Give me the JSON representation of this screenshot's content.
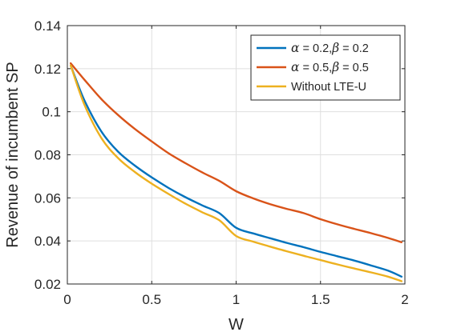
{
  "chart_data": {
    "type": "line",
    "title": "",
    "xlabel": "W",
    "ylabel": "Revenue of incumbent SP",
    "xlim": [
      0,
      2
    ],
    "ylim": [
      0.02,
      0.14
    ],
    "xticks": [
      0,
      0.5,
      1,
      1.5,
      2
    ],
    "xtick_labels": [
      "0",
      "0.5",
      "1",
      "1.5",
      "2"
    ],
    "yticks": [
      0.02,
      0.04,
      0.06,
      0.08,
      0.1,
      0.12,
      0.14
    ],
    "ytick_labels": [
      "0.02",
      "0.04",
      "0.06",
      "0.08",
      "0.1",
      "0.12",
      "0.14"
    ],
    "grid": true,
    "legend_position": "top-right",
    "x": [
      0.02,
      0.1,
      0.2,
      0.3,
      0.4,
      0.5,
      0.6,
      0.7,
      0.8,
      0.9,
      1.0,
      1.1,
      1.2,
      1.3,
      1.4,
      1.5,
      1.6,
      1.7,
      1.8,
      1.9,
      1.98
    ],
    "series": [
      {
        "legend_parts": [
          "α",
          " = 0.2,",
          "β",
          " = 0.2"
        ],
        "color": "#0072BD",
        "values": [
          0.1215,
          0.1055,
          0.091,
          0.0815,
          0.075,
          0.0695,
          0.0646,
          0.0603,
          0.0565,
          0.0529,
          0.0461,
          0.0435,
          0.0413,
          0.0391,
          0.0371,
          0.0349,
          0.0329,
          0.0309,
          0.0286,
          0.0262,
          0.0234
        ]
      },
      {
        "legend_parts": [
          "α",
          " = 0.5,",
          "β",
          " = 0.5"
        ],
        "color": "#D95319",
        "values": [
          0.1225,
          0.115,
          0.106,
          0.0985,
          0.092,
          0.0862,
          0.0807,
          0.0761,
          0.0718,
          0.0679,
          0.0631,
          0.0598,
          0.0571,
          0.0549,
          0.0529,
          0.0501,
          0.0477,
          0.0456,
          0.0436,
          0.0414,
          0.0394
        ]
      },
      {
        "legend_parts": [
          "Without LTE-U"
        ],
        "color": "#EDB120",
        "values": [
          0.1215,
          0.1035,
          0.088,
          0.0785,
          0.072,
          0.0666,
          0.0618,
          0.0573,
          0.0533,
          0.0496,
          0.0423,
          0.0397,
          0.0374,
          0.0352,
          0.0331,
          0.0311,
          0.0291,
          0.0272,
          0.0254,
          0.0234,
          0.0213
        ]
      }
    ]
  }
}
